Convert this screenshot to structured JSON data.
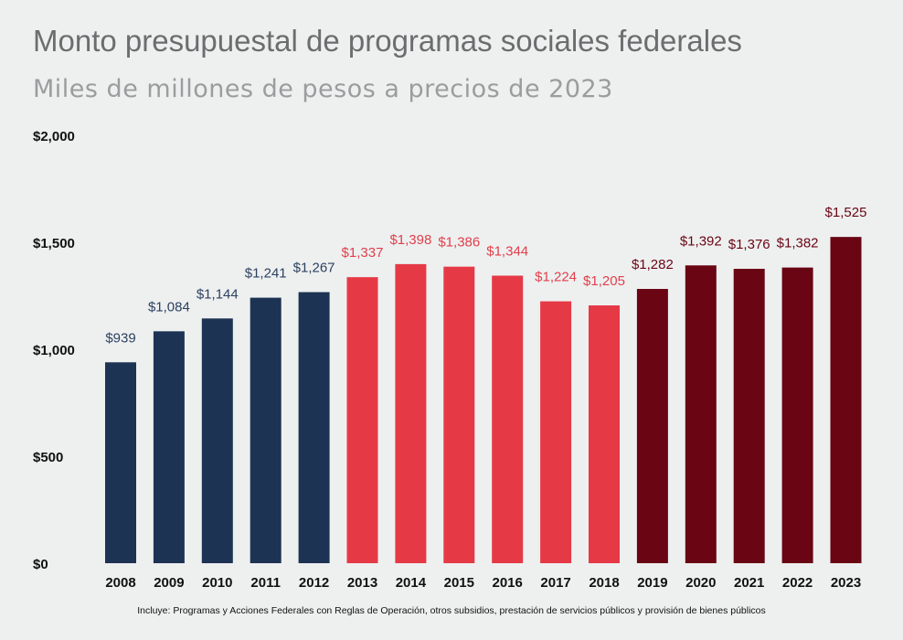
{
  "chart_data": {
    "type": "bar",
    "title": "Monto presupuestal de programas sociales federales",
    "subtitle": "Miles de millones de pesos a precios de 2023",
    "categories": [
      "2008",
      "2009",
      "2010",
      "2011",
      "2012",
      "2013",
      "2014",
      "2015",
      "2016",
      "2017",
      "2018",
      "2019",
      "2020",
      "2021",
      "2022",
      "2023"
    ],
    "values": [
      939,
      1084,
      1144,
      1241,
      1267,
      1337,
      1398,
      1386,
      1344,
      1224,
      1205,
      1282,
      1392,
      1376,
      1382,
      1525
    ],
    "data_labels": [
      "$939",
      "$1,084",
      "$1,144",
      "$1,241",
      "$1,267",
      "$1,337",
      "$1,398",
      "$1,386",
      "$1,344",
      "$1,224",
      "$1,205",
      "$1,282",
      "$1,392",
      "$1,376",
      "$1,382",
      "$1,525"
    ],
    "colors": [
      "#1d3353",
      "#1d3353",
      "#1d3353",
      "#1d3353",
      "#1d3353",
      "#e63946",
      "#e63946",
      "#e63946",
      "#e63946",
      "#e63946",
      "#e63946",
      "#6a0513",
      "#6a0513",
      "#6a0513",
      "#6a0513",
      "#6a0513"
    ],
    "label_colors": [
      "#2d4060",
      "#2d4060",
      "#2d4060",
      "#2d4060",
      "#2d4060",
      "#e0404c",
      "#e0404c",
      "#e0404c",
      "#e0404c",
      "#e0404c",
      "#e0404c",
      "#6a0513",
      "#6a0513",
      "#6a0513",
      "#6a0513",
      "#6a0513"
    ],
    "ylim": [
      0,
      2000
    ],
    "yticks": [
      0,
      500,
      1000,
      1500,
      2000
    ],
    "ytick_labels": [
      "$0",
      "$500",
      "$1,000",
      "$1,500",
      "$2,000"
    ],
    "grid": false,
    "xlabel": "",
    "ylabel": "",
    "note": "Incluye:  Programas y Acciones Federales con Reglas de Operación, otros subsidios, prestación de servicios públicos y provisión de bienes públicos"
  }
}
